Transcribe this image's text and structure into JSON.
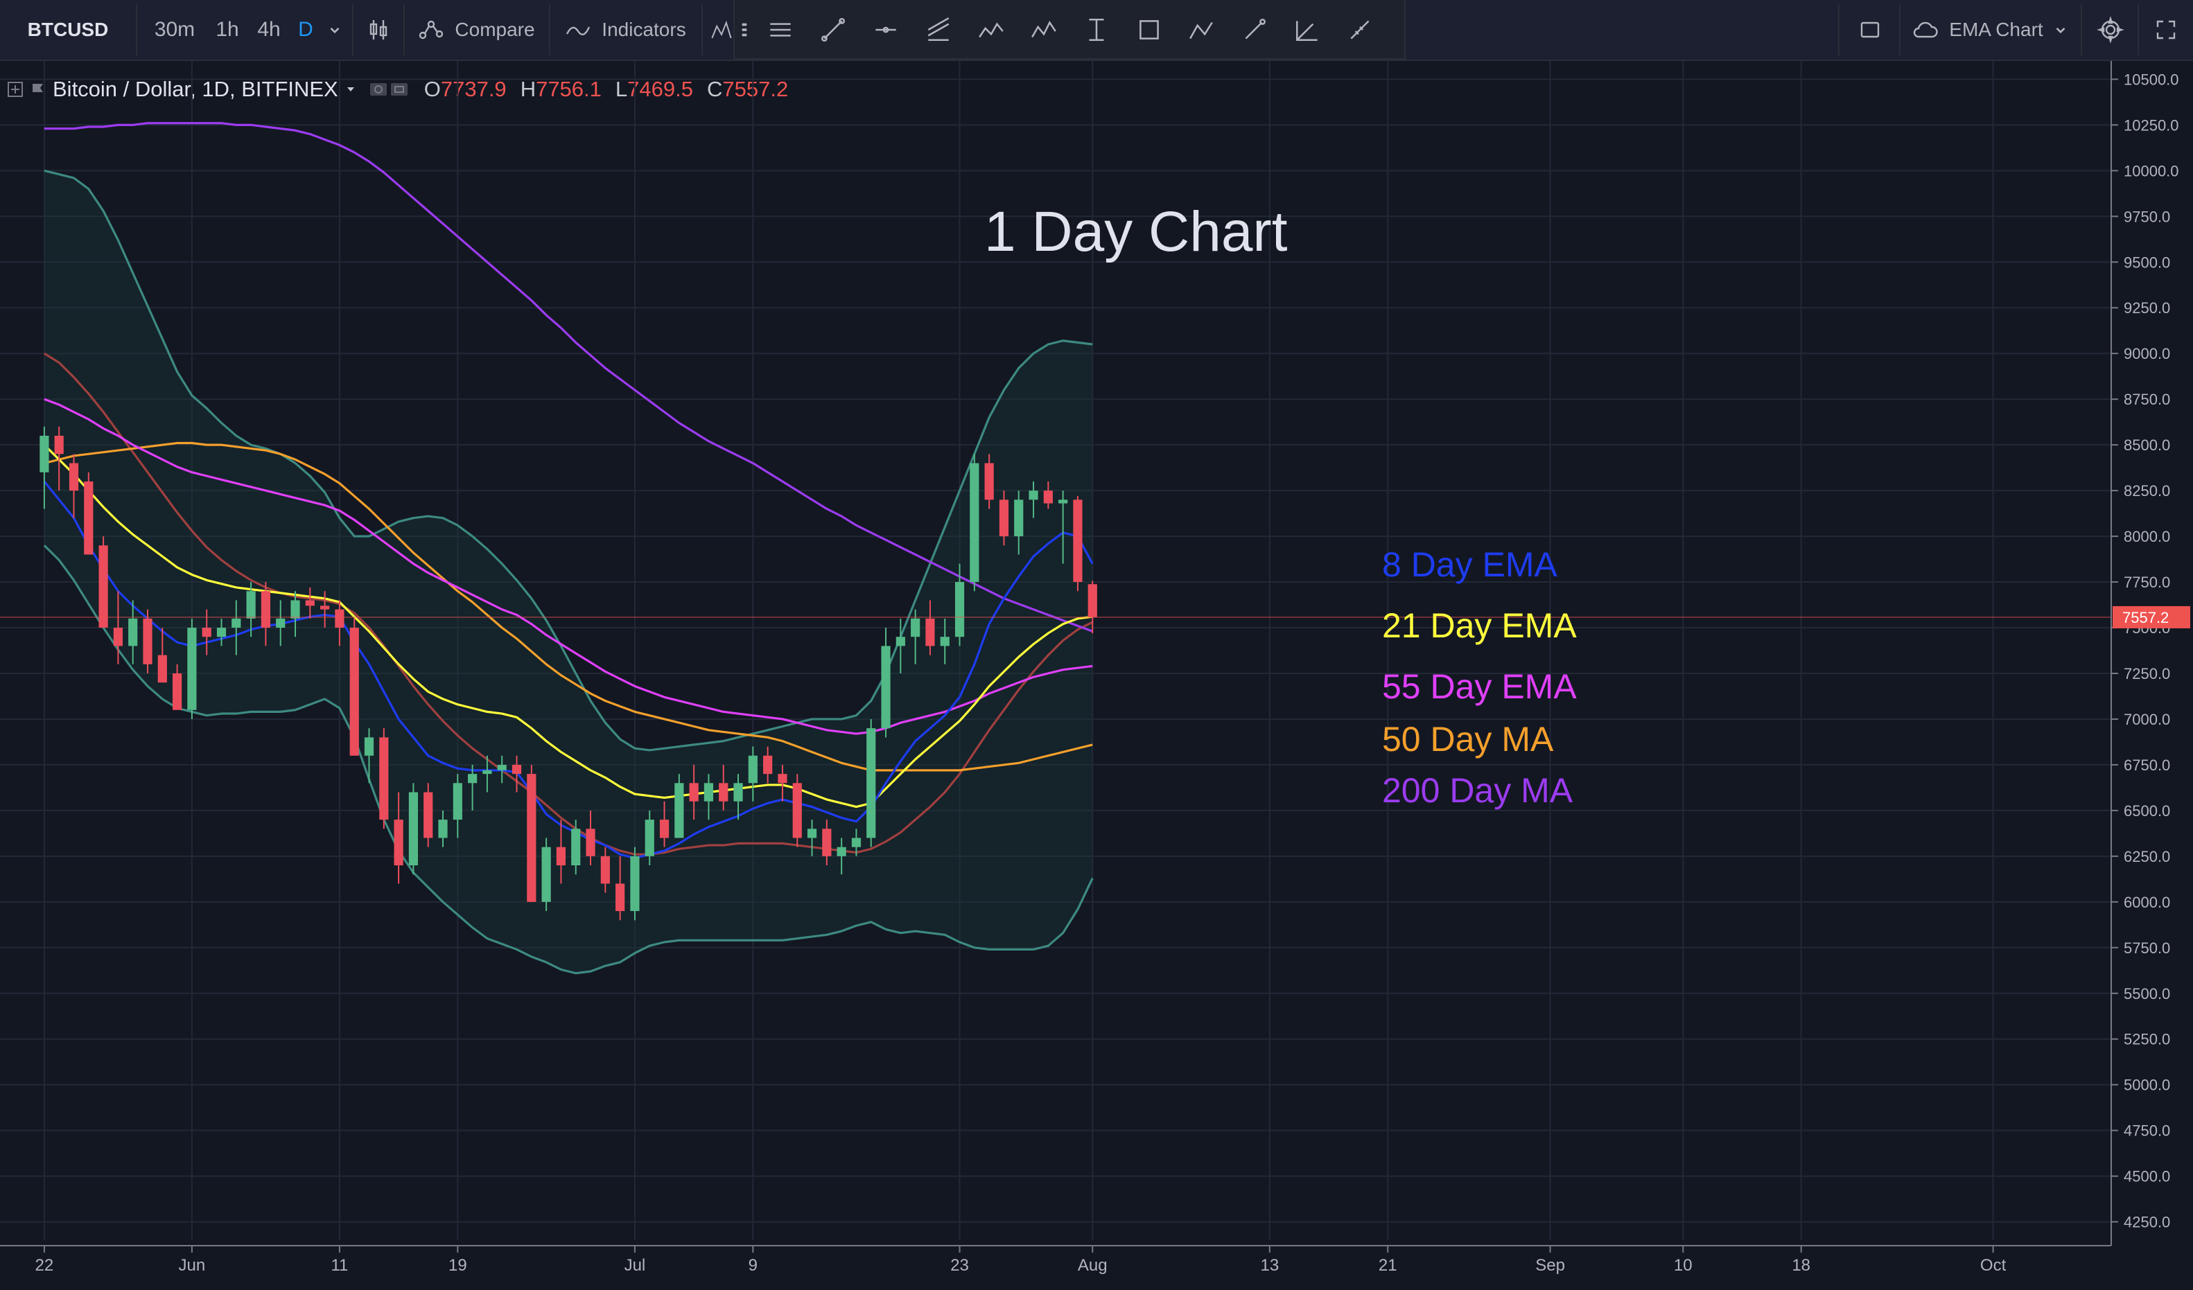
{
  "toolbar": {
    "symbol": "BTCUSD",
    "timeframes": [
      {
        "label": "30m",
        "active": false
      },
      {
        "label": "1h",
        "active": false
      },
      {
        "label": "4h",
        "active": false
      },
      {
        "label": "D",
        "active": true
      }
    ],
    "compare_label": "Compare",
    "indicators_label": "Indicators",
    "layout_name": "EMA Chart"
  },
  "legend": {
    "symbol": "Bitcoin / Dollar, 1D, BITFINEX",
    "o_label": "O",
    "o": "7737.9",
    "h_label": "H",
    "h": "7756.1",
    "l_label": "L",
    "l": "7469.5",
    "c_label": "C",
    "c": "7557.2"
  },
  "annotations": {
    "title": "1 Day Chart",
    "labels": [
      {
        "text": "8 Day EMA",
        "color": "#1e3cf0"
      },
      {
        "text": "21 Day EMA",
        "color": "#ffff3c"
      },
      {
        "text": "55 Day EMA",
        "color": "#e040fb"
      },
      {
        "text": "50 Day MA",
        "color": "#f5a02c"
      },
      {
        "text": "200 Day MA",
        "color": "#9c3cf0"
      }
    ]
  },
  "colors": {
    "background": "#131722",
    "up": "#53b987",
    "down": "#eb4d5c",
    "bollinger": "#3d8a82",
    "grid": "#232837",
    "price_line": "#ef5350"
  },
  "chart_data": {
    "type": "candlestick",
    "title": "1 Day Chart",
    "ylim": [
      4150,
      10600
    ],
    "yticks": [
      "10500.0",
      "10250.0",
      "10000.0",
      "9750.0",
      "9500.0",
      "9250.0",
      "9000.0",
      "8750.0",
      "8500.0",
      "8250.0",
      "8000.0",
      "7750.0",
      "7500.0",
      "7250.0",
      "7000.0",
      "6750.0",
      "6500.0",
      "6250.0",
      "6000.0",
      "5750.0",
      "5500.0",
      "5250.0",
      "5000.0",
      "4750.0",
      "4500.0",
      "4250.0"
    ],
    "last_price": "7557.2",
    "xticks": [
      {
        "label": "22",
        "day": 0
      },
      {
        "label": "Jun",
        "day": 10
      },
      {
        "label": "11",
        "day": 20
      },
      {
        "label": "19",
        "day": 28
      },
      {
        "label": "Jul",
        "day": 40
      },
      {
        "label": "9",
        "day": 48
      },
      {
        "label": "23",
        "day": 62
      },
      {
        "label": "Aug",
        "day": 71
      },
      {
        "label": "13",
        "day": 83
      },
      {
        "label": "21",
        "day": 91
      },
      {
        "label": "Sep",
        "day": 102
      },
      {
        "label": "10",
        "day": 111
      },
      {
        "label": "18",
        "day": 119
      },
      {
        "label": "Oct",
        "day": 132
      }
    ],
    "x_domain": [
      -3,
      140
    ],
    "ohlc": [
      [
        8350,
        8600,
        8150,
        8550
      ],
      [
        8550,
        8600,
        8250,
        8450
      ],
      [
        8400,
        8450,
        8100,
        8250
      ],
      [
        8300,
        8350,
        7900,
        7900
      ],
      [
        7950,
        8000,
        7500,
        7500
      ],
      [
        7500,
        7700,
        7300,
        7400
      ],
      [
        7400,
        7650,
        7300,
        7550
      ],
      [
        7550,
        7600,
        7250,
        7300
      ],
      [
        7350,
        7500,
        7200,
        7200
      ],
      [
        7250,
        7300,
        7050,
        7050
      ],
      [
        7050,
        7550,
        7000,
        7500
      ],
      [
        7500,
        7600,
        7350,
        7450
      ],
      [
        7450,
        7550,
        7400,
        7500
      ],
      [
        7500,
        7650,
        7350,
        7550
      ],
      [
        7550,
        7750,
        7450,
        7700
      ],
      [
        7700,
        7750,
        7400,
        7500
      ],
      [
        7500,
        7650,
        7400,
        7550
      ],
      [
        7550,
        7700,
        7450,
        7650
      ],
      [
        7650,
        7720,
        7550,
        7620
      ],
      [
        7620,
        7700,
        7500,
        7600
      ],
      [
        7600,
        7650,
        7400,
        7500
      ],
      [
        7500,
        7550,
        6800,
        6800
      ],
      [
        6800,
        6950,
        6650,
        6900
      ],
      [
        6900,
        6950,
        6400,
        6450
      ],
      [
        6450,
        6600,
        6100,
        6200
      ],
      [
        6200,
        6650,
        6150,
        6600
      ],
      [
        6600,
        6650,
        6300,
        6350
      ],
      [
        6350,
        6500,
        6300,
        6450
      ],
      [
        6450,
        6700,
        6350,
        6650
      ],
      [
        6650,
        6750,
        6500,
        6700
      ],
      [
        6700,
        6800,
        6600,
        6720
      ],
      [
        6720,
        6800,
        6650,
        6750
      ],
      [
        6750,
        6800,
        6600,
        6700
      ],
      [
        6700,
        6750,
        6000,
        6000
      ],
      [
        6000,
        6350,
        5950,
        6300
      ],
      [
        6300,
        6450,
        6100,
        6200
      ],
      [
        6200,
        6450,
        6150,
        6400
      ],
      [
        6400,
        6500,
        6200,
        6250
      ],
      [
        6250,
        6300,
        6050,
        6100
      ],
      [
        6100,
        6250,
        5900,
        5950
      ],
      [
        5950,
        6300,
        5900,
        6250
      ],
      [
        6250,
        6500,
        6200,
        6450
      ],
      [
        6450,
        6550,
        6300,
        6350
      ],
      [
        6350,
        6700,
        6350,
        6650
      ],
      [
        6650,
        6750,
        6450,
        6550
      ],
      [
        6550,
        6700,
        6450,
        6650
      ],
      [
        6650,
        6750,
        6500,
        6550
      ],
      [
        6550,
        6700,
        6450,
        6650
      ],
      [
        6650,
        6850,
        6550,
        6800
      ],
      [
        6800,
        6850,
        6650,
        6700
      ],
      [
        6700,
        6750,
        6550,
        6650
      ],
      [
        6650,
        6700,
        6300,
        6350
      ],
      [
        6350,
        6450,
        6250,
        6400
      ],
      [
        6400,
        6450,
        6200,
        6250
      ],
      [
        6250,
        6350,
        6150,
        6300
      ],
      [
        6300,
        6400,
        6250,
        6350
      ],
      [
        6350,
        7000,
        6300,
        6950
      ],
      [
        6950,
        7500,
        6900,
        7400
      ],
      [
        7400,
        7550,
        7250,
        7450
      ],
      [
        7450,
        7600,
        7300,
        7550
      ],
      [
        7550,
        7650,
        7350,
        7400
      ],
      [
        7400,
        7550,
        7300,
        7450
      ],
      [
        7450,
        7850,
        7400,
        7750
      ],
      [
        7750,
        8450,
        7700,
        8400
      ],
      [
        8400,
        8450,
        8150,
        8200
      ],
      [
        8200,
        8250,
        7950,
        8000
      ],
      [
        8000,
        8250,
        7900,
        8200
      ],
      [
        8200,
        8300,
        8100,
        8250
      ],
      [
        8250,
        8300,
        8150,
        8180
      ],
      [
        8180,
        8250,
        7850,
        8200
      ],
      [
        8200,
        8220,
        7700,
        7750
      ],
      [
        7737.9,
        7756.1,
        7469.5,
        7557.2
      ]
    ],
    "series": [
      {
        "name": "8 Day EMA",
        "color": "#1e3cf0",
        "values": [
          8300,
          8200,
          8100,
          7950,
          7820,
          7700,
          7620,
          7550,
          7480,
          7420,
          7400,
          7420,
          7440,
          7460,
          7490,
          7510,
          7520,
          7540,
          7560,
          7570,
          7560,
          7420,
          7300,
          7150,
          7000,
          6900,
          6800,
          6760,
          6730,
          6720,
          6720,
          6720,
          6710,
          6600,
          6480,
          6420,
          6380,
          6340,
          6310,
          6260,
          6240,
          6260,
          6280,
          6320,
          6370,
          6410,
          6440,
          6470,
          6510,
          6540,
          6560,
          6540,
          6520,
          6490,
          6460,
          6440,
          6520,
          6650,
          6770,
          6880,
          6950,
          7020,
          7120,
          7300,
          7520,
          7660,
          7780,
          7890,
          7960,
          8020,
          8000,
          7850
        ]
      },
      {
        "name": "21 Day EMA",
        "color": "#ffff3c",
        "values": [
          8500,
          8420,
          8340,
          8250,
          8160,
          8080,
          8010,
          7950,
          7890,
          7830,
          7790,
          7760,
          7740,
          7720,
          7710,
          7700,
          7690,
          7680,
          7670,
          7660,
          7640,
          7560,
          7480,
          7390,
          7300,
          7220,
          7150,
          7110,
          7080,
          7060,
          7040,
          7030,
          7010,
          6950,
          6880,
          6820,
          6770,
          6720,
          6680,
          6630,
          6590,
          6580,
          6570,
          6580,
          6590,
          6600,
          6610,
          6620,
          6630,
          6640,
          6640,
          6620,
          6590,
          6560,
          6540,
          6520,
          6540,
          6620,
          6700,
          6780,
          6850,
          6920,
          6990,
          7080,
          7180,
          7260,
          7340,
          7410,
          7470,
          7520,
          7550,
          7560
        ]
      },
      {
        "name": "55 Day EMA",
        "color": "#e040fb",
        "values": [
          8750,
          8720,
          8680,
          8640,
          8590,
          8550,
          8500,
          8460,
          8420,
          8380,
          8350,
          8330,
          8310,
          8290,
          8270,
          8250,
          8230,
          8210,
          8190,
          8170,
          8140,
          8090,
          8030,
          7970,
          7910,
          7850,
          7800,
          7760,
          7720,
          7680,
          7640,
          7600,
          7570,
          7520,
          7460,
          7410,
          7360,
          7310,
          7260,
          7220,
          7180,
          7150,
          7120,
          7100,
          7080,
          7060,
          7040,
          7030,
          7020,
          7010,
          7000,
          6980,
          6960,
          6940,
          6930,
          6920,
          6930,
          6950,
          6980,
          7000,
          7020,
          7040,
          7070,
          7100,
          7140,
          7170,
          7200,
          7230,
          7250,
          7270,
          7280,
          7290
        ]
      },
      {
        "name": "50 Day MA",
        "color": "#f5a02c",
        "values": [
          8400,
          8420,
          8440,
          8450,
          8460,
          8470,
          8480,
          8490,
          8500,
          8510,
          8510,
          8500,
          8500,
          8490,
          8480,
          8470,
          8450,
          8420,
          8380,
          8340,
          8290,
          8220,
          8150,
          8070,
          7990,
          7910,
          7840,
          7770,
          7700,
          7640,
          7570,
          7500,
          7440,
          7370,
          7300,
          7240,
          7190,
          7140,
          7100,
          7070,
          7040,
          7020,
          7000,
          6980,
          6960,
          6940,
          6930,
          6920,
          6910,
          6900,
          6880,
          6850,
          6820,
          6790,
          6760,
          6740,
          6720,
          6720,
          6720,
          6720,
          6720,
          6720,
          6720,
          6730,
          6740,
          6750,
          6760,
          6780,
          6800,
          6820,
          6840,
          6860
        ]
      },
      {
        "name": "200 Day MA",
        "color": "#9c3cf0",
        "values": [
          10230,
          10230,
          10230,
          10240,
          10240,
          10250,
          10250,
          10260,
          10260,
          10260,
          10260,
          10260,
          10260,
          10250,
          10250,
          10240,
          10230,
          10220,
          10200,
          10170,
          10140,
          10100,
          10050,
          9990,
          9920,
          9850,
          9780,
          9710,
          9640,
          9570,
          9500,
          9430,
          9360,
          9290,
          9210,
          9140,
          9060,
          8990,
          8920,
          8860,
          8800,
          8740,
          8680,
          8620,
          8570,
          8520,
          8480,
          8440,
          8400,
          8350,
          8300,
          8250,
          8200,
          8150,
          8110,
          8060,
          8020,
          7980,
          7940,
          7900,
          7860,
          7820,
          7780,
          7740,
          7700,
          7660,
          7630,
          7600,
          7570,
          7540,
          7510,
          7480
        ]
      },
      {
        "name": "BB Middle",
        "color": "#a04040",
        "values": [
          9000,
          8950,
          8870,
          8780,
          8680,
          8570,
          8460,
          8350,
          8240,
          8130,
          8030,
          7940,
          7870,
          7810,
          7760,
          7720,
          7690,
          7670,
          7660,
          7650,
          7630,
          7580,
          7500,
          7400,
          7290,
          7180,
          7080,
          6990,
          6910,
          6840,
          6780,
          6720,
          6660,
          6600,
          6530,
          6460,
          6400,
          6350,
          6310,
          6280,
          6260,
          6260,
          6270,
          6290,
          6300,
          6310,
          6310,
          6320,
          6320,
          6320,
          6320,
          6310,
          6300,
          6290,
          6280,
          6270,
          6290,
          6330,
          6380,
          6450,
          6520,
          6600,
          6700,
          6820,
          6940,
          7050,
          7160,
          7260,
          7350,
          7430,
          7490,
          7530
        ]
      },
      {
        "name": "BB Upper",
        "color": "#3d8a82",
        "values": [
          10000,
          9980,
          9960,
          9900,
          9780,
          9620,
          9440,
          9260,
          9080,
          8900,
          8770,
          8700,
          8620,
          8550,
          8500,
          8480,
          8450,
          8400,
          8330,
          8240,
          8100,
          8000,
          8000,
          8040,
          8080,
          8100,
          8110,
          8100,
          8060,
          8000,
          7930,
          7850,
          7760,
          7660,
          7540,
          7400,
          7250,
          7100,
          6980,
          6890,
          6840,
          6830,
          6840,
          6850,
          6860,
          6870,
          6880,
          6900,
          6920,
          6940,
          6960,
          6980,
          7000,
          7000,
          7000,
          7020,
          7100,
          7250,
          7450,
          7650,
          7850,
          8050,
          8250,
          8450,
          8650,
          8800,
          8920,
          9000,
          9050,
          9070,
          9060,
          9050
        ]
      },
      {
        "name": "BB Lower",
        "color": "#3d8a82",
        "values": [
          7950,
          7870,
          7760,
          7630,
          7500,
          7380,
          7270,
          7180,
          7110,
          7060,
          7040,
          7020,
          7030,
          7030,
          7040,
          7040,
          7040,
          7050,
          7080,
          7110,
          7060,
          6900,
          6670,
          6450,
          6280,
          6160,
          6080,
          6000,
          5930,
          5860,
          5800,
          5770,
          5740,
          5700,
          5670,
          5630,
          5610,
          5620,
          5650,
          5670,
          5720,
          5760,
          5780,
          5790,
          5790,
          5790,
          5790,
          5790,
          5790,
          5790,
          5790,
          5800,
          5810,
          5820,
          5840,
          5870,
          5890,
          5850,
          5830,
          5840,
          5830,
          5820,
          5780,
          5750,
          5740,
          5740,
          5740,
          5740,
          5760,
          5830,
          5960,
          6130
        ]
      }
    ]
  }
}
